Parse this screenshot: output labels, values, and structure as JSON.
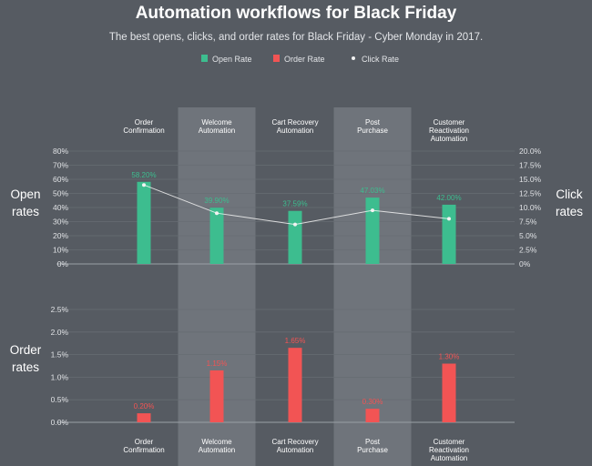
{
  "title": "Automation workflows for Black Friday",
  "subtitle": "The best opens, clicks, and order rates for Black Friday - Cyber Monday in 2017.",
  "legend": [
    {
      "label": "Open Rate",
      "color": "#3dbd8f",
      "shape": "square"
    },
    {
      "label": "Order Rate",
      "color": "#f25454",
      "shape": "square"
    },
    {
      "label": "Click Rate",
      "color": "#f2f2f2",
      "shape": "dot"
    }
  ],
  "chart_data": [
    {
      "type": "bar",
      "categories": [
        [
          "Order",
          "Confirmation"
        ],
        [
          "Welcome",
          "Automation"
        ],
        [
          "Cart Recovery",
          "Automation"
        ],
        [
          "Post",
          "Purchase"
        ],
        [
          "Customer",
          "Reactivation",
          "Automation"
        ]
      ],
      "highlighted_categories": [
        1,
        3
      ],
      "series": [
        {
          "name": "Open Rate",
          "values": [
            58.2,
            39.9,
            37.59,
            47.03,
            42.0
          ],
          "labels": [
            "58.20%",
            "39.90%",
            "37.59%",
            "47.03%",
            "42.00%"
          ],
          "color": "#3dbd8f"
        },
        {
          "name": "Click Rate",
          "type": "line",
          "axis": "right",
          "values": [
            14.0,
            9.0,
            7.0,
            9.5,
            8.0
          ],
          "color": "#f2f2f2"
        }
      ],
      "ylabel": [
        "Open",
        "rates"
      ],
      "ylim": [
        0,
        80
      ],
      "yticks": [
        "80%",
        "70%",
        "60%",
        "50%",
        "40%",
        "30%",
        "20%",
        "10%",
        "0%"
      ],
      "y2label": [
        "Click",
        "rates"
      ],
      "y2lim": [
        0,
        20
      ],
      "y2ticks": [
        "20.0%",
        "17.5%",
        "15.0%",
        "12.5%",
        "10.0%",
        "7.5%",
        "5.0%",
        "2.5%",
        "0%"
      ],
      "grid": true
    },
    {
      "type": "bar",
      "categories": [
        [
          "Order",
          "Confirmation"
        ],
        [
          "Welcome",
          "Automation"
        ],
        [
          "Cart Recovery",
          "Automation"
        ],
        [
          "Post",
          "Purchase"
        ],
        [
          "Customer",
          "Reactivation",
          "Automation"
        ]
      ],
      "series": [
        {
          "name": "Order Rate",
          "values": [
            0.2,
            1.15,
            1.65,
            0.3,
            1.3
          ],
          "labels": [
            "0.20%",
            "1.15%",
            "1.65%",
            "0.30%",
            "1.30%"
          ],
          "color": "#f25454"
        }
      ],
      "ylabel": [
        "Order",
        "rates"
      ],
      "ylim": [
        0,
        2.5
      ],
      "yticks": [
        "2.5%",
        "2.0%",
        "1.5%",
        "1.0%",
        "0.5%",
        "0.0%"
      ],
      "grid": true
    }
  ]
}
